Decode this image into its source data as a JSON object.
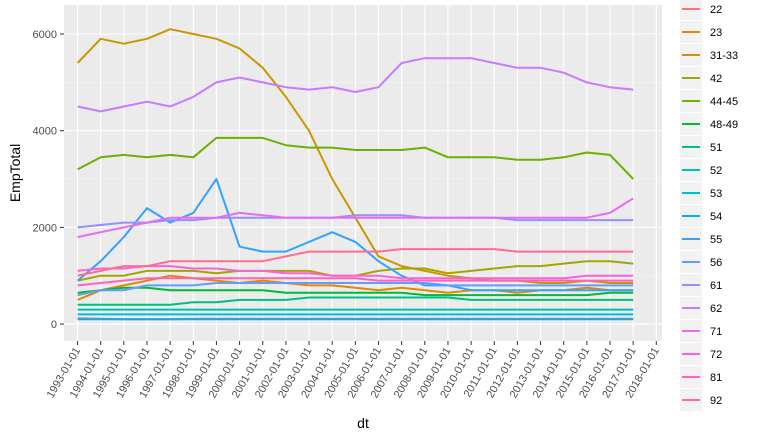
{
  "chart_data": {
    "type": "line",
    "title": "",
    "xlabel": "dt",
    "ylabel": "EmpTotal",
    "xlim": [
      "1992-06-01",
      "2018-04-01"
    ],
    "ylim": [
      -350,
      6600
    ],
    "grid": true,
    "legend_position": "right",
    "x_ticks": [
      "1993-01-01",
      "1994-01-01",
      "1995-01-01",
      "1996-01-01",
      "1997-01-01",
      "1998-01-01",
      "1999-01-01",
      "2000-01-01",
      "2001-01-01",
      "2002-01-01",
      "2003-01-01",
      "2004-01-01",
      "2005-01-01",
      "2006-01-01",
      "2007-01-01",
      "2008-01-01",
      "2009-01-01",
      "2010-01-01",
      "2011-01-01",
      "2012-01-01",
      "2013-01-01",
      "2014-01-01",
      "2015-01-01",
      "2016-01-01",
      "2017-01-01",
      "2018-01-01"
    ],
    "y_ticks": [
      0,
      2000,
      4000,
      6000
    ],
    "x": [
      "1993-01-01",
      "1994-01-01",
      "1995-01-01",
      "1996-01-01",
      "1997-01-01",
      "1998-01-01",
      "1999-01-01",
      "2000-01-01",
      "2001-01-01",
      "2002-01-01",
      "2003-01-01",
      "2004-01-01",
      "2005-01-01",
      "2006-01-01",
      "2007-01-01",
      "2008-01-01",
      "2009-01-01",
      "2010-01-01",
      "2011-01-01",
      "2012-01-01",
      "2013-01-01",
      "2014-01-01",
      "2015-01-01",
      "2016-01-01",
      "2017-01-01"
    ],
    "series": [
      {
        "name": "22",
        "color": "#F8766D",
        "values": [
          120,
          110,
          100,
          100,
          100,
          110,
          110,
          110,
          110,
          110,
          110,
          110,
          110,
          110,
          110,
          110,
          110,
          110,
          110,
          110,
          110,
          110,
          110,
          110,
          110
        ]
      },
      {
        "name": "23",
        "color": "#E58700",
        "values": [
          500,
          700,
          800,
          900,
          1000,
          950,
          900,
          850,
          900,
          850,
          800,
          800,
          750,
          700,
          750,
          700,
          650,
          700,
          700,
          650,
          700,
          700,
          750,
          700,
          700
        ]
      },
      {
        "name": "31-33",
        "color": "#C99800",
        "values": [
          5400,
          5900,
          5800,
          5900,
          6100,
          6000,
          5900,
          5700,
          5300,
          4700,
          4000,
          3000,
          2200,
          1400,
          1200,
          1100,
          1000,
          950,
          900,
          900,
          850,
          850,
          900,
          850,
          850
        ]
      },
      {
        "name": "42",
        "color": "#A3A500",
        "values": [
          900,
          1000,
          1000,
          1100,
          1100,
          1100,
          1050,
          1100,
          1100,
          1100,
          1100,
          1000,
          1000,
          1100,
          1150,
          1150,
          1050,
          1100,
          1150,
          1200,
          1200,
          1250,
          1300,
          1300,
          1250
        ]
      },
      {
        "name": "44-45",
        "color": "#6BB100",
        "values": [
          3200,
          3450,
          3500,
          3450,
          3500,
          3450,
          3850,
          3850,
          3850,
          3700,
          3650,
          3650,
          3600,
          3600,
          3600,
          3650,
          3450,
          3450,
          3450,
          3400,
          3400,
          3450,
          3550,
          3500,
          3000
        ]
      },
      {
        "name": "48-49",
        "color": "#00BA38",
        "values": [
          650,
          700,
          750,
          750,
          700,
          700,
          700,
          700,
          700,
          650,
          650,
          650,
          650,
          650,
          650,
          600,
          600,
          600,
          600,
          600,
          600,
          600,
          600,
          650,
          650
        ]
      },
      {
        "name": "51",
        "color": "#00BF7D",
        "values": [
          400,
          400,
          400,
          400,
          400,
          450,
          450,
          500,
          500,
          500,
          550,
          550,
          550,
          550,
          550,
          550,
          550,
          500,
          500,
          500,
          500,
          500,
          500,
          500,
          500
        ]
      },
      {
        "name": "52",
        "color": "#00C0AF",
        "values": [
          300,
          300,
          300,
          300,
          300,
          300,
          300,
          300,
          300,
          300,
          300,
          300,
          300,
          300,
          300,
          300,
          300,
          300,
          300,
          300,
          300,
          300,
          300,
          300,
          300
        ]
      },
      {
        "name": "53",
        "color": "#00BCD8",
        "values": [
          200,
          200,
          200,
          200,
          200,
          200,
          200,
          200,
          200,
          200,
          200,
          200,
          200,
          200,
          200,
          200,
          200,
          200,
          200,
          200,
          200,
          200,
          200,
          200,
          200
        ]
      },
      {
        "name": "54",
        "color": "#00B0F6",
        "values": [
          100,
          100,
          100,
          100,
          100,
          100,
          100,
          100,
          100,
          100,
          100,
          100,
          100,
          100,
          100,
          100,
          100,
          100,
          100,
          100,
          100,
          100,
          100,
          100,
          100
        ]
      },
      {
        "name": "55",
        "color": "#35A2FF",
        "values": [
          900,
          1300,
          1800,
          2400,
          2100,
          2300,
          3000,
          1600,
          1500,
          1500,
          1700,
          1900,
          1700,
          1300,
          1000,
          800,
          800,
          700,
          700,
          700,
          700,
          700,
          700,
          700,
          700
        ]
      },
      {
        "name": "56",
        "color": "#619CFF",
        "values": [
          600,
          700,
          700,
          800,
          800,
          800,
          850,
          850,
          850,
          850,
          850,
          850,
          850,
          850,
          850,
          850,
          800,
          800,
          800,
          800,
          800,
          800,
          800,
          800,
          800
        ]
      },
      {
        "name": "61",
        "color": "#9590FF",
        "values": [
          2000,
          2050,
          2100,
          2100,
          2150,
          2150,
          2200,
          2200,
          2200,
          2200,
          2200,
          2200,
          2250,
          2250,
          2250,
          2200,
          2200,
          2200,
          2200,
          2150,
          2150,
          2150,
          2150,
          2150,
          2150
        ]
      },
      {
        "name": "62",
        "color": "#C77CFF",
        "values": [
          4500,
          4400,
          4500,
          4600,
          4500,
          4700,
          5000,
          5100,
          5000,
          4900,
          4850,
          4900,
          4800,
          4900,
          5400,
          5500,
          5500,
          5500,
          5400,
          5300,
          5300,
          5200,
          5000,
          4900,
          4850
        ]
      },
      {
        "name": "71",
        "color": "#E76BF3",
        "values": [
          1800,
          1900,
          2000,
          2100,
          2200,
          2200,
          2200,
          2300,
          2250,
          2200,
          2200,
          2200,
          2200,
          2200,
          2200,
          2200,
          2200,
          2200,
          2200,
          2200,
          2200,
          2200,
          2200,
          2300,
          2600
        ]
      },
      {
        "name": "72",
        "color": "#FA62DB",
        "values": [
          1100,
          1150,
          1150,
          1200,
          1200,
          1150,
          1150,
          1100,
          1100,
          1050,
          1050,
          1000,
          1000,
          1000,
          950,
          950,
          950,
          950,
          950,
          950,
          950,
          950,
          1000,
          1000,
          1000
        ]
      },
      {
        "name": "81",
        "color": "#FF62BC",
        "values": [
          800,
          850,
          900,
          950,
          950,
          950,
          950,
          950,
          950,
          950,
          950,
          950,
          950,
          900,
          900,
          900,
          900,
          900,
          900,
          900,
          900,
          900,
          900,
          900,
          900
        ]
      },
      {
        "name": "92",
        "color": "#FF6C91",
        "values": [
          1000,
          1100,
          1200,
          1200,
          1300,
          1300,
          1300,
          1300,
          1300,
          1400,
          1500,
          1500,
          1500,
          1500,
          1550,
          1550,
          1550,
          1550,
          1550,
          1500,
          1500,
          1500,
          1500,
          1500,
          1500
        ]
      }
    ]
  }
}
